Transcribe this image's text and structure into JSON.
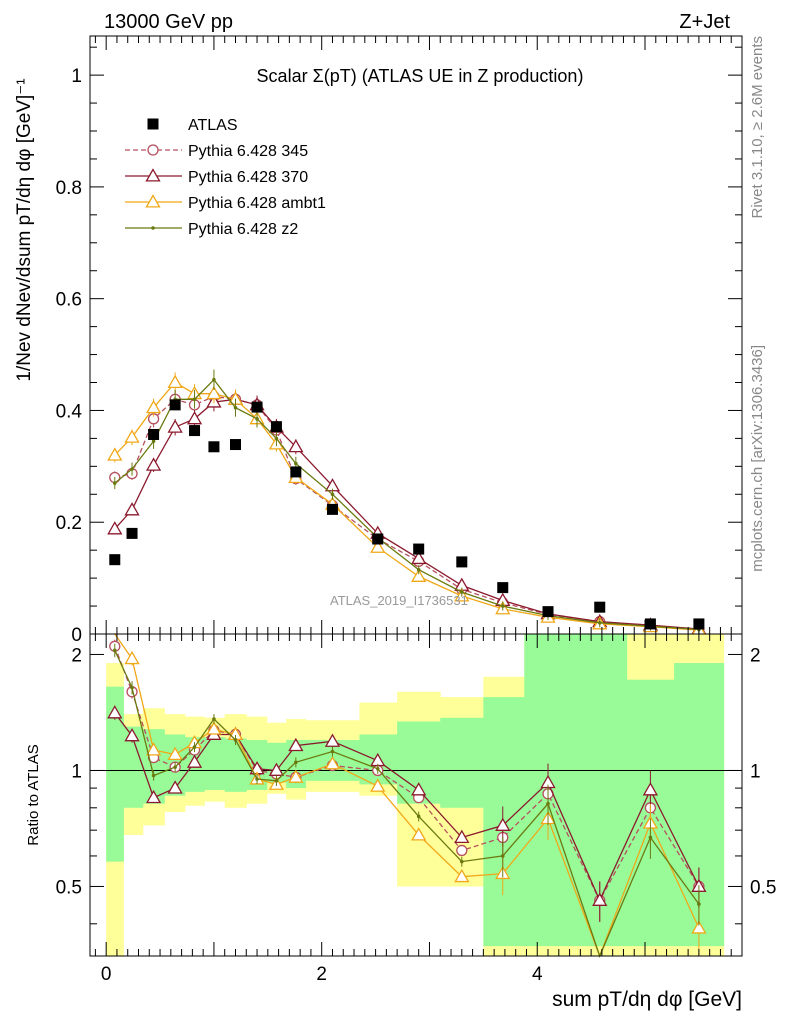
{
  "header": {
    "left": "13000 GeV pp",
    "right": "Z+Jet"
  },
  "side_labels": {
    "rivet": "Rivet 3.1.10, ≥ 2.6M events",
    "mcplots": "mcplots.cern.ch [arXiv:1306.3436]"
  },
  "watermark": "ATLAS_2019_I1736531",
  "chart_data": [
    {
      "type": "scatter",
      "title": "Scalar Σ(pT) (ATLAS UE in Z production)",
      "xlabel": "sum pT/dη dφ [GeV]",
      "ylabel": "1/Nev dNev/dsum pT/dη dφ [GeV]⁻¹",
      "xlim": [
        -0.15,
        5.9
      ],
      "ylim": [
        0,
        1.07
      ],
      "yticks": [
        "0",
        "0.2",
        "0.4",
        "0.6",
        "0.8",
        "1"
      ],
      "x": [
        0.08,
        0.24,
        0.44,
        0.64,
        0.82,
        1.0,
        1.2,
        1.4,
        1.58,
        1.76,
        2.1,
        2.52,
        2.9,
        3.3,
        3.68,
        4.1,
        4.58,
        5.05,
        5.5
      ],
      "series": [
        {
          "name": "ATLAS",
          "color": "#000000",
          "marker": "square",
          "values": [
            0.133,
            0.18,
            0.357,
            0.41,
            0.364,
            0.335,
            0.339,
            0.406,
            0.371,
            0.29,
            0.223,
            0.17,
            0.152,
            0.129,
            0.083,
            0.04,
            0.048,
            0.018,
            0.018
          ]
        },
        {
          "name": "Pythia 6.428 345",
          "color": "#b5505f",
          "marker": "open-circle",
          "dashed": true,
          "values": [
            0.28,
            0.287,
            0.385,
            0.42,
            0.41,
            0.425,
            0.42,
            0.41,
            0.365,
            0.278,
            0.23,
            0.17,
            0.13,
            0.08,
            0.056,
            0.035,
            0.022,
            0.015,
            0.009
          ]
        },
        {
          "name": "Pythia 6.428 370",
          "color": "#8b1a2e",
          "marker": "open-triangle",
          "dashed": false,
          "values": [
            0.188,
            0.222,
            0.302,
            0.37,
            0.385,
            0.415,
            0.42,
            0.41,
            0.37,
            0.335,
            0.265,
            0.18,
            0.135,
            0.087,
            0.06,
            0.036,
            0.022,
            0.016,
            0.009
          ]
        },
        {
          "name": "Pythia 6.428 ambt1",
          "color": "#f0a818",
          "marker": "open-triangle",
          "dashed": false,
          "values": [
            0.32,
            0.352,
            0.405,
            0.45,
            0.43,
            0.43,
            0.42,
            0.385,
            0.34,
            0.28,
            0.232,
            0.155,
            0.103,
            0.068,
            0.045,
            0.03,
            0.018,
            0.013,
            0.007
          ]
        },
        {
          "name": "Pythia 6.428 z2",
          "color": "#6b7a10",
          "marker": "dot",
          "dashed": false,
          "values": [
            0.27,
            0.295,
            0.345,
            0.42,
            0.42,
            0.455,
            0.405,
            0.385,
            0.35,
            0.305,
            0.25,
            0.172,
            0.115,
            0.075,
            0.05,
            0.033,
            0.02,
            0.014,
            0.008
          ]
        }
      ],
      "legend": "top-left"
    },
    {
      "type": "line",
      "ylabel": "Ratio to ATLAS",
      "xlim": [
        -0.15,
        5.9
      ],
      "ylim": [
        0.33,
        2.26
      ],
      "xticks": [
        "0",
        "2",
        "4"
      ],
      "yticks": [
        "0.5",
        "1",
        "2"
      ],
      "bin_edges": [
        0.0,
        0.16,
        0.34,
        0.54,
        0.73,
        0.91,
        1.1,
        1.3,
        1.49,
        1.67,
        1.85,
        2.35,
        2.7,
        3.1,
        3.5,
        3.88,
        4.33,
        4.83,
        5.27,
        5.73
      ],
      "band_green": [
        [
          0.58,
          1.65
        ],
        [
          0.8,
          1.3
        ],
        [
          0.82,
          1.28
        ],
        [
          0.86,
          1.24
        ],
        [
          0.88,
          1.22
        ],
        [
          0.89,
          1.22
        ],
        [
          0.88,
          1.21
        ],
        [
          0.89,
          1.2
        ],
        [
          0.93,
          1.18
        ],
        [
          0.9,
          1.2
        ],
        [
          0.94,
          1.2
        ],
        [
          0.92,
          1.24
        ],
        [
          0.82,
          1.34
        ],
        [
          0.8,
          1.37
        ],
        [
          0.35,
          1.55
        ],
        [
          0.35,
          2.3
        ],
        [
          0.35,
          2.3
        ],
        [
          0.35,
          1.72
        ],
        [
          0.35,
          1.9
        ]
      ],
      "band_yellow": [
        [
          0.33,
          1.9
        ],
        [
          0.68,
          1.4
        ],
        [
          0.72,
          1.45
        ],
        [
          0.78,
          1.4
        ],
        [
          0.81,
          1.38
        ],
        [
          0.83,
          1.37
        ],
        [
          0.8,
          1.4
        ],
        [
          0.82,
          1.38
        ],
        [
          0.87,
          1.33
        ],
        [
          0.84,
          1.36
        ],
        [
          0.88,
          1.35
        ],
        [
          0.86,
          1.5
        ],
        [
          0.5,
          1.6
        ],
        [
          0.5,
          1.55
        ],
        [
          0.33,
          1.75
        ],
        [
          0.33,
          2.5
        ],
        [
          0.33,
          1.75
        ],
        [
          0.33,
          2.3
        ],
        [
          0.33,
          2.3
        ]
      ],
      "series": [
        {
          "name": "Pythia 6.428 345",
          "values": [
            2.1,
            1.6,
            1.08,
            1.02,
            1.13,
            1.27,
            1.24,
            1.0,
            0.98,
            0.96,
            1.03,
            1.0,
            0.85,
            0.62,
            0.67,
            0.87,
            0.46,
            0.8,
            0.5
          ]
        },
        {
          "name": "Pythia 6.428 370",
          "values": [
            1.41,
            1.23,
            0.85,
            0.9,
            1.05,
            1.24,
            1.24,
            1.01,
            1.0,
            1.16,
            1.19,
            1.06,
            0.89,
            0.67,
            0.72,
            0.93,
            0.46,
            0.89,
            0.5
          ]
        },
        {
          "name": "Pythia 6.428 ambt1",
          "values": [
            2.4,
            1.95,
            1.13,
            1.1,
            1.18,
            1.28,
            1.24,
            0.95,
            0.92,
            0.96,
            1.04,
            0.91,
            0.68,
            0.53,
            0.54,
            0.75,
            0.33,
            0.73,
            0.39
          ]
        },
        {
          "name": "Pythia 6.428 z2",
          "values": [
            2.05,
            1.64,
            0.97,
            1.02,
            1.15,
            1.36,
            1.2,
            0.95,
            0.94,
            1.05,
            1.12,
            1.01,
            0.76,
            0.58,
            0.6,
            0.82,
            0.33,
            0.67,
            0.45
          ]
        }
      ]
    }
  ]
}
